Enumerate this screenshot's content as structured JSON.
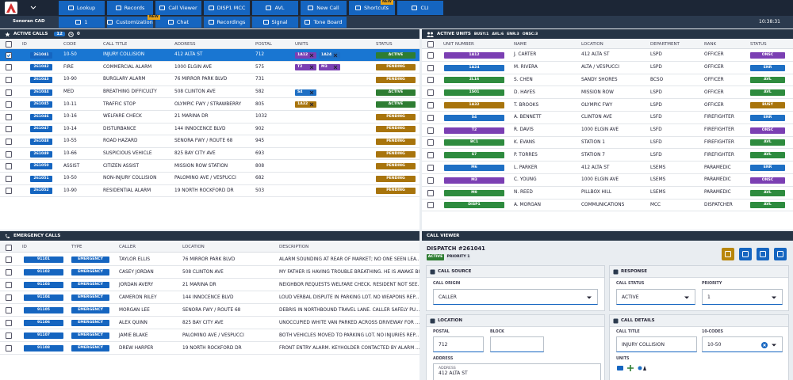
{
  "toolbar": {
    "row1": [
      "Lookup",
      "Records",
      "Call Viewer",
      "DISP1 MCC",
      "AVL",
      "New Call",
      "Shortcuts",
      "CLI"
    ],
    "row1_badge": "NEW",
    "app_name": "Sonoran CAD",
    "profile": "1",
    "row2": [
      "Customization",
      "Chat",
      "Recordings",
      "Signal",
      "Tone Board"
    ],
    "row2_badge": "NEW",
    "clock": "10:38:31"
  },
  "status_colors": {
    "ACTIVE": "#2e7d32",
    "PENDING": "#a8740c",
    "ONSC": "#7b3fb3",
    "ENR": "#1e6fc4",
    "AVL": "#2e8b3e",
    "BUSY": "#a8740c"
  },
  "active_calls": {
    "title": "ACTIVE CALLS",
    "count": 12,
    "alerts": 0,
    "columns": [
      "ID",
      "CODE",
      "CALL TITLE",
      "ADDRESS",
      "POSTAL",
      "UNITS",
      "STATUS"
    ],
    "rows": [
      {
        "id": "261041",
        "code": "10-50",
        "title": "INJURY COLLISION",
        "address": "412 ALTA ST",
        "postal": "712",
        "units": [
          "1A12",
          "1A24"
        ],
        "status": "ACTIVE",
        "selected": true
      },
      {
        "id": "261042",
        "code": "FIRE",
        "title": "COMMERCIAL ALARM",
        "address": "1000 ELGIN AVE",
        "postal": "575",
        "units": [
          "T2",
          "M3"
        ],
        "status": "PENDING"
      },
      {
        "id": "261043",
        "code": "10-90",
        "title": "BURGLARY ALARM",
        "address": "76 MIRROR PARK BLVD",
        "postal": "731",
        "units": [],
        "status": "PENDING"
      },
      {
        "id": "261044",
        "code": "MED",
        "title": "BREATHING DIFFICULTY",
        "address": "508 CLINTON AVE",
        "postal": "582",
        "units": [
          "S4"
        ],
        "status": "ACTIVE"
      },
      {
        "id": "261045",
        "code": "10-11",
        "title": "TRAFFIC STOP",
        "address": "OLYMPIC FWY / STRAWBERRY",
        "postal": "805",
        "units": [
          "1A32"
        ],
        "status": "ACTIVE"
      },
      {
        "id": "261046",
        "code": "10-16",
        "title": "WELFARE CHECK",
        "address": "21 MARINA DR",
        "postal": "1032",
        "units": [],
        "status": "PENDING"
      },
      {
        "id": "261047",
        "code": "10-14",
        "title": "DISTURBANCE",
        "address": "144 INNOCENCE BLVD",
        "postal": "902",
        "units": [],
        "status": "PENDING"
      },
      {
        "id": "261048",
        "code": "10-55",
        "title": "ROAD HAZARD",
        "address": "SENORA FWY / ROUTE 68",
        "postal": "945",
        "units": [],
        "status": "PENDING"
      },
      {
        "id": "261049",
        "code": "10-66",
        "title": "SUSPICIOUS VEHICLE",
        "address": "825 BAY CITY AVE",
        "postal": "693",
        "units": [],
        "status": "PENDING"
      },
      {
        "id": "261050",
        "code": "ASSIST",
        "title": "CITIZEN ASSIST",
        "address": "MISSION ROW STATION",
        "postal": "808",
        "units": [],
        "status": "PENDING"
      },
      {
        "id": "261051",
        "code": "10-50",
        "title": "NON-INJURY COLLISION",
        "address": "PALOMINO AVE / VESPUCCI",
        "postal": "682",
        "units": [],
        "status": "PENDING"
      },
      {
        "id": "261052",
        "code": "10-90",
        "title": "RESIDENTIAL ALARM",
        "address": "19 NORTH ROCKFORD DR",
        "postal": "503",
        "units": [],
        "status": "PENDING"
      }
    ]
  },
  "active_units": {
    "title": "ACTIVE UNITS",
    "summary": [
      {
        "label": "BUSY:",
        "value": 1
      },
      {
        "label": "AVL:",
        "value": 6
      },
      {
        "label": "ENR:",
        "value": 3
      },
      {
        "label": "ONSC:",
        "value": 3
      }
    ],
    "columns": [
      "UNIT NUMBER",
      "NAME",
      "LOCATION",
      "DEPARTMENT",
      "RANK",
      "STATUS"
    ],
    "rows": [
      {
        "unit": "1A12",
        "name": "J. CARTER",
        "location": "412 ALTA ST",
        "department": "LSPD",
        "rank": "OFFICER",
        "status": "ONSC"
      },
      {
        "unit": "1A24",
        "name": "M. RIVERA",
        "location": "ALTA / VESPUCCI",
        "department": "LSPD",
        "rank": "OFFICER",
        "status": "ENR"
      },
      {
        "unit": "2L16",
        "name": "S. CHEN",
        "location": "SANDY SHORES",
        "department": "BCSO",
        "rank": "OFFICER",
        "status": "AVL"
      },
      {
        "unit": "1S01",
        "name": "D. HAYES",
        "location": "MISSION ROW",
        "department": "LSPD",
        "rank": "OFFICER",
        "status": "AVL"
      },
      {
        "unit": "1A32",
        "name": "T. BROOKS",
        "location": "OLYMPIC FWY",
        "department": "LSPD",
        "rank": "OFFICER",
        "status": "BUSY"
      },
      {
        "unit": "S4",
        "name": "A. BENNETT",
        "location": "CLINTON AVE",
        "department": "LSFD",
        "rank": "FIREFIGHTER",
        "status": "ENR"
      },
      {
        "unit": "T2",
        "name": "R. DAVIS",
        "location": "1000 ELGIN AVE",
        "department": "LSFD",
        "rank": "FIREFIGHTER",
        "status": "ONSC"
      },
      {
        "unit": "BC1",
        "name": "K. EVANS",
        "location": "STATION 1",
        "department": "LSFD",
        "rank": "FIREFIGHTER",
        "status": "AVL"
      },
      {
        "unit": "S7",
        "name": "P. TORRES",
        "location": "STATION 7",
        "department": "LSFD",
        "rank": "FIREFIGHTER",
        "status": "AVL"
      },
      {
        "unit": "M6",
        "name": "L. PARKER",
        "location": "412 ALTA ST",
        "department": "LSEMS",
        "rank": "PARAMEDIC",
        "status": "ENR"
      },
      {
        "unit": "M3",
        "name": "C. YOUNG",
        "location": "1000 ELGIN AVE",
        "department": "LSEMS",
        "rank": "PARAMEDIC",
        "status": "ONSC"
      },
      {
        "unit": "M9",
        "name": "N. REED",
        "location": "PILLBOX HILL",
        "department": "LSEMS",
        "rank": "PARAMEDIC",
        "status": "AVL"
      },
      {
        "unit": "DISP1",
        "name": "A. MORGAN",
        "location": "COMMUNICATIONS",
        "department": "MCC",
        "rank": "DISPATCHER",
        "status": "AVL"
      }
    ]
  },
  "emergency_calls": {
    "title": "EMERGENCY CALLS",
    "columns": [
      "ID",
      "TYPE",
      "CALLER",
      "LOCATION",
      "DESCRIPTION"
    ],
    "rows": [
      {
        "id": "91101",
        "type": "EMERGENCY",
        "caller": "TAYLOR ELLIS",
        "location": "76 MIRROR PARK BLVD",
        "description": "ALARM SOUNDING AT REAR OF MARKET; NO ONE SEEN LEA..."
      },
      {
        "id": "91102",
        "type": "EMERGENCY",
        "caller": "CASEY JORDAN",
        "location": "508 CLINTON AVE",
        "description": "MY FATHER IS HAVING TROUBLE BREATHING. HE IS AWAKE BU..."
      },
      {
        "id": "91103",
        "type": "EMERGENCY",
        "caller": "JORDAN AVERY",
        "location": "21 MARINA DR",
        "description": "NEIGHBOR REQUESTS WELFARE CHECK. RESIDENT NOT SEE..."
      },
      {
        "id": "91104",
        "type": "EMERGENCY",
        "caller": "CAMERON RILEY",
        "location": "144 INNOCENCE BLVD",
        "description": "LOUD VERBAL DISPUTE IN PARKING LOT. NO WEAPONS REP..."
      },
      {
        "id": "91105",
        "type": "EMERGENCY",
        "caller": "MORGAN LEE",
        "location": "SENORA FWY / ROUTE 68",
        "description": "DEBRIS IN NORTHBOUND TRAVEL LANE. CALLER SAFELY PU..."
      },
      {
        "id": "91106",
        "type": "EMERGENCY",
        "caller": "ALEX QUINN",
        "location": "825 BAY CITY AVE",
        "description": "UNOCCUPIED WHITE VAN PARKED ACROSS DRIVEWAY FOR ..."
      },
      {
        "id": "91107",
        "type": "EMERGENCY",
        "caller": "JAMIE BLAKE",
        "location": "PALOMINO AVE / VESPUCCI",
        "description": "BOTH VEHICLES MOVED TO PARKING LOT. NO INJURIES REP..."
      },
      {
        "id": "91108",
        "type": "EMERGENCY",
        "caller": "DREW HARPER",
        "location": "19 NORTH ROCKFORD DR",
        "description": "FRONT ENTRY ALARM. KEYHOLDER CONTACTED BY ALARM ..."
      }
    ]
  },
  "call_viewer": {
    "title": "CALL VIEWER",
    "dispatch": "DISPATCH #261041",
    "status": "ACTIVE",
    "priority_badge": "PRIORITY 1",
    "call_source": {
      "title": "CALL SOURCE",
      "origin_label": "CALL ORIGIN",
      "origin": "CALLER"
    },
    "response": {
      "title": "RESPONSE",
      "status_label": "CALL STATUS",
      "status": "ACTIVE",
      "priority_label": "PRIORITY",
      "priority": "1"
    },
    "location": {
      "title": "LOCATION",
      "postal_label": "POSTAL",
      "postal": "712",
      "block_label": "BLOCK",
      "address_label": "ADDRESS",
      "address_inner_label": "ADDRESS",
      "address": "412 ALTA ST"
    },
    "details": {
      "title": "CALL DETAILS",
      "title_label": "CALL TITLE",
      "call_title": "INJURY COLLISION",
      "codes_label": "10-CODES",
      "code": "10-50",
      "units_label": "UNITS"
    }
  }
}
